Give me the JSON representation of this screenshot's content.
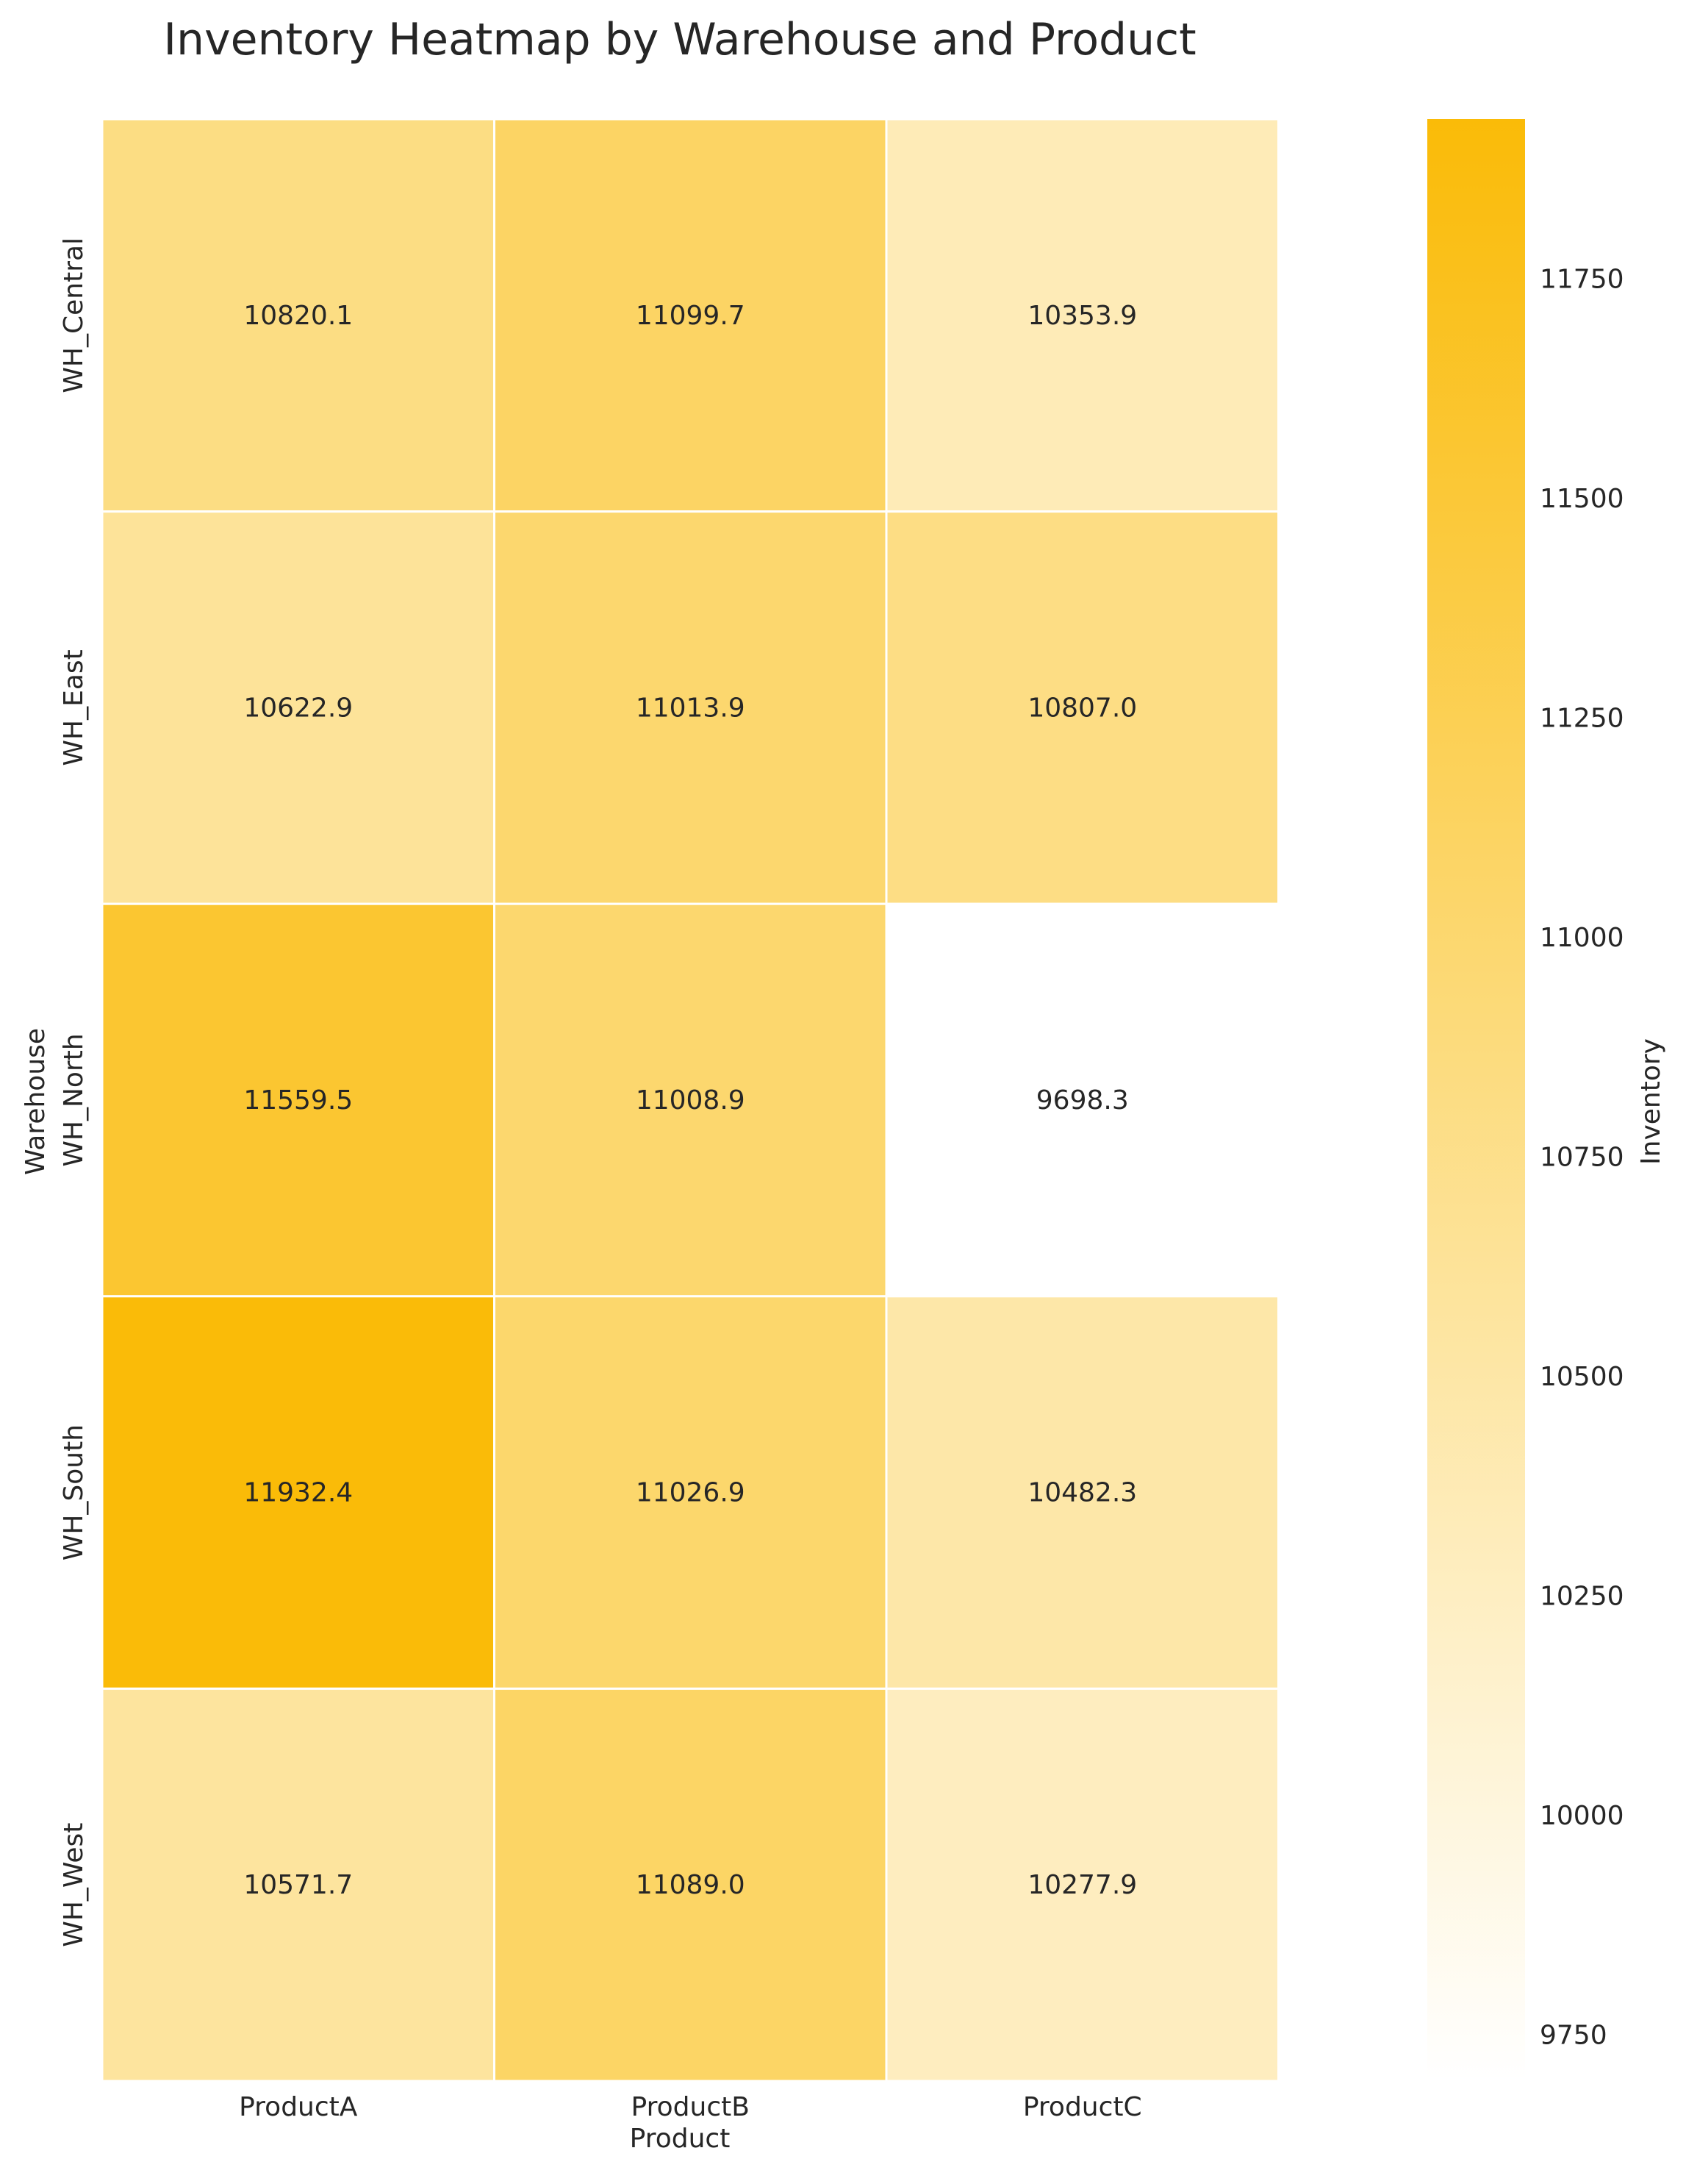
{
  "chart_data": {
    "type": "heatmap",
    "title": "Inventory Heatmap by Warehouse and Product",
    "xlabel": "Product",
    "ylabel": "Warehouse",
    "x_categories": [
      "ProductA",
      "ProductB",
      "ProductC"
    ],
    "y_categories": [
      "WH_Central",
      "WH_East",
      "WH_North",
      "WH_South",
      "WH_West"
    ],
    "values": [
      [
        10820.1,
        11099.7,
        10353.9
      ],
      [
        10622.9,
        11013.9,
        10807.0
      ],
      [
        11559.5,
        11008.9,
        9698.3
      ],
      [
        11932.4,
        11026.9,
        10482.3
      ],
      [
        10571.7,
        11089.0,
        10277.9
      ]
    ],
    "value_labels": [
      [
        "10820.1",
        "11099.7",
        "10353.9"
      ],
      [
        "10622.9",
        "11013.9",
        "10807.0"
      ],
      [
        "11559.5",
        "11008.9",
        "9698.3"
      ],
      [
        "11932.4",
        "11026.9",
        "10482.3"
      ],
      [
        "10571.7",
        "11089.0",
        "10277.9"
      ]
    ],
    "colorbar": {
      "label": "Inventory",
      "range": [
        9698.3,
        11932.4
      ],
      "ticks": [
        9750,
        10000,
        10250,
        10500,
        10750,
        11000,
        11250,
        11500,
        11750
      ],
      "tick_labels": [
        "9750",
        "10000",
        "10250",
        "10500",
        "10750",
        "11000",
        "11250",
        "11500",
        "11750"
      ],
      "color_low": "#ffffff",
      "color_high": "#fabb08"
    },
    "grid": false,
    "cell_border_color": "#ffffff"
  }
}
